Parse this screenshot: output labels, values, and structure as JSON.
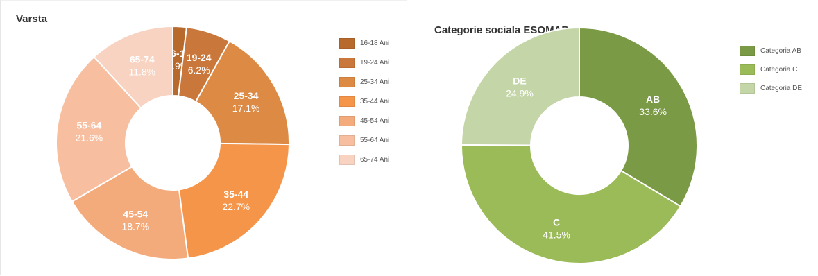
{
  "chart_data": [
    {
      "type": "pie",
      "donut": true,
      "title": "Varsta",
      "labels": [
        "16-18",
        "19-24",
        "25-34",
        "35-44",
        "45-54",
        "55-64",
        "65-74"
      ],
      "values": [
        1.9,
        6.2,
        17.1,
        22.7,
        18.7,
        21.6,
        11.8
      ],
      "value_labels": [
        "1.9%",
        "6.2%",
        "17.1%",
        "22.7%",
        "18.7%",
        "21.6%",
        "11.8%"
      ],
      "legend": [
        "16-18 Ani",
        "19-24 Ani",
        "25-34 Ani",
        "35-44 Ani",
        "45-54 Ani",
        "55-64 Ani",
        "65-74 Ani"
      ],
      "colors": [
        "#b8692c",
        "#c9773a",
        "#dd8a45",
        "#f5954a",
        "#f4ab7c",
        "#f7bea0",
        "#f8d3c1"
      ],
      "legend_position": "right"
    },
    {
      "type": "pie",
      "donut": true,
      "title": "Categorie sociala ESOMAR",
      "labels": [
        "AB",
        "C",
        "DE"
      ],
      "values": [
        33.6,
        41.5,
        24.9
      ],
      "value_labels": [
        "33.6%",
        "41.5%",
        "24.9%"
      ],
      "legend": [
        "Categoria AB",
        "Categoria C",
        "Categoria DE"
      ],
      "colors": [
        "#7a9a45",
        "#9bbb59",
        "#c4d6a8"
      ],
      "legend_position": "right"
    }
  ]
}
